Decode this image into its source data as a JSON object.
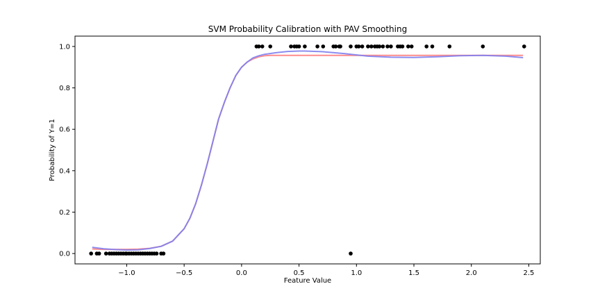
{
  "chart_data": {
    "type": "scatter",
    "title": "SVM Probability Calibration with PAV Smoothing",
    "xlabel": "Feature Value",
    "ylabel": "Probability of Y=1",
    "xlim": [
      -1.45,
      2.6
    ],
    "ylim": [
      -0.05,
      1.05
    ],
    "xticks": [
      -1.0,
      -0.5,
      0.0,
      0.5,
      1.0,
      1.5,
      2.0,
      2.5
    ],
    "xtick_labels": [
      "−1.0",
      "−0.5",
      "0.0",
      "0.5",
      "1.0",
      "1.5",
      "2.0",
      "2.5"
    ],
    "yticks": [
      0.0,
      0.2,
      0.4,
      0.6,
      0.8,
      1.0
    ],
    "ytick_labels": [
      "0.0",
      "0.2",
      "0.4",
      "0.6",
      "0.8",
      "1.0"
    ],
    "grid": false,
    "series": [
      {
        "kind": "line",
        "color": "#ff7f7f",
        "x": [
          -1.3,
          -1.2,
          -1.1,
          -1.0,
          -0.9,
          -0.8,
          -0.7,
          -0.6,
          -0.5,
          -0.45,
          -0.4,
          -0.35,
          -0.3,
          -0.25,
          -0.2,
          -0.15,
          -0.1,
          -0.05,
          0.0,
          0.05,
          0.1,
          0.15,
          0.2,
          0.25,
          0.5,
          1.0,
          1.5,
          2.0,
          2.45
        ],
        "y": [
          0.022,
          0.02,
          0.02,
          0.02,
          0.021,
          0.025,
          0.035,
          0.06,
          0.12,
          0.17,
          0.24,
          0.33,
          0.43,
          0.54,
          0.65,
          0.73,
          0.8,
          0.86,
          0.9,
          0.925,
          0.94,
          0.95,
          0.955,
          0.957,
          0.957,
          0.957,
          0.957,
          0.957,
          0.957
        ]
      },
      {
        "kind": "line",
        "color": "#8080ee",
        "x": [
          -1.3,
          -1.2,
          -1.1,
          -1.0,
          -0.9,
          -0.8,
          -0.7,
          -0.6,
          -0.5,
          -0.45,
          -0.4,
          -0.35,
          -0.3,
          -0.25,
          -0.2,
          -0.15,
          -0.1,
          -0.05,
          0.0,
          0.05,
          0.1,
          0.15,
          0.2,
          0.3,
          0.4,
          0.5,
          0.55,
          0.7,
          0.9,
          1.1,
          1.3,
          1.5,
          1.7,
          1.9,
          2.1,
          2.3,
          2.45
        ],
        "y": [
          0.03,
          0.023,
          0.019,
          0.017,
          0.018,
          0.024,
          0.035,
          0.06,
          0.12,
          0.17,
          0.24,
          0.33,
          0.43,
          0.54,
          0.65,
          0.73,
          0.8,
          0.86,
          0.9,
          0.925,
          0.945,
          0.955,
          0.962,
          0.97,
          0.976,
          0.978,
          0.978,
          0.975,
          0.965,
          0.953,
          0.948,
          0.947,
          0.95,
          0.955,
          0.957,
          0.953,
          0.946
        ]
      },
      {
        "kind": "scatter",
        "color": "#000000",
        "x": [
          -1.31,
          -1.26,
          -1.24,
          -1.18,
          -1.15,
          -1.13,
          -1.11,
          -1.09,
          -1.07,
          -1.05,
          -1.03,
          -1.01,
          -1.0,
          -0.98,
          -0.96,
          -0.94,
          -0.92,
          -0.9,
          -0.88,
          -0.86,
          -0.84,
          -0.82,
          -0.8,
          -0.78,
          -0.76,
          -0.74,
          -0.7,
          -0.68,
          0.95,
          0.13,
          0.15,
          0.18,
          0.25,
          0.43,
          0.46,
          0.48,
          0.5,
          0.55,
          0.66,
          0.71,
          0.8,
          0.82,
          0.85,
          0.86,
          0.95,
          1.0,
          1.02,
          1.05,
          1.1,
          1.13,
          1.16,
          1.18,
          1.2,
          1.23,
          1.27,
          1.3,
          1.36,
          1.38,
          1.4,
          1.45,
          1.48,
          1.61,
          1.66,
          1.81,
          2.1,
          2.46
        ],
        "y": [
          0,
          0,
          0,
          0,
          0,
          0,
          0,
          0,
          0,
          0,
          0,
          0,
          0,
          0,
          0,
          0,
          0,
          0,
          0,
          0,
          0,
          0,
          0,
          0,
          0,
          0,
          0,
          0,
          0,
          1,
          1,
          1,
          1,
          1,
          1,
          1,
          1,
          1,
          1,
          1,
          1,
          1,
          1,
          1,
          1,
          1,
          1,
          1,
          1,
          1,
          1,
          1,
          1,
          1,
          1,
          1,
          1,
          1,
          1,
          1,
          1,
          1,
          1,
          1,
          1,
          1
        ]
      }
    ]
  }
}
